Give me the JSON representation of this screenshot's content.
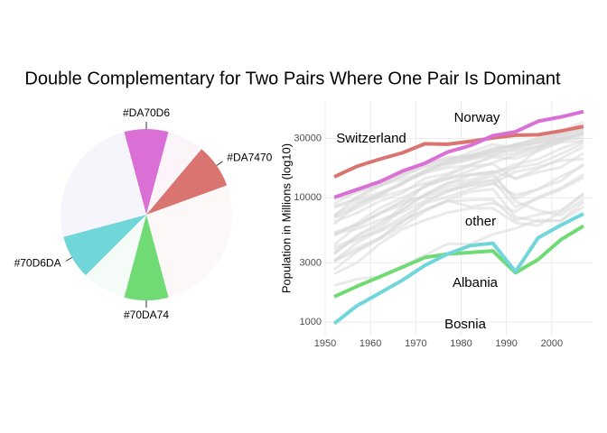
{
  "title": "Double Complementary for Two Pairs Where One Pair Is Dominant",
  "chart_data": [
    {
      "type": "pie",
      "categories": [
        "#DA70D6",
        null,
        "#DA7470",
        null,
        "#70DA74",
        null,
        "#70D6DA",
        null
      ],
      "values": [
        30,
        25,
        30,
        95,
        30,
        30,
        30,
        90
      ],
      "colors": [
        "#DA70D6",
        "#FBF4F8",
        "#DA7470",
        "#FCF8F8",
        "#70DA74",
        "#F5FCF8",
        "#70D6DA",
        "#F7F5FC"
      ]
    },
    {
      "type": "line",
      "ylabel": "Population in Millions (log10)",
      "log_y": true,
      "grid": true,
      "x": [
        1952,
        1957,
        1962,
        1967,
        1972,
        1977,
        1982,
        1987,
        1992,
        1997,
        2002,
        2007
      ],
      "xlim": [
        1950,
        2009
      ],
      "xticks": [
        1950,
        1960,
        1970,
        1980,
        1990,
        2000
      ],
      "ylim": [
        780,
        60000
      ],
      "yticks": [
        1000,
        3000,
        10000,
        30000
      ],
      "series": [
        {
          "name": "other",
          "color": "#d9d9d9",
          "lines": [
            [
              6137,
              8843,
              10751,
              12835,
              16662,
              19749,
              21597,
              23688,
              27042,
              29096,
              32418,
              36126
            ],
            [
              8343,
              9715,
              10991,
              13149,
              16672,
              19118,
              20979,
              22526,
              25576,
              27561,
              30486,
              33693
            ],
            [
              2444,
              3009,
              4255,
              5578,
              6597,
              7612,
              8225,
              8239,
              6303,
              5970,
              7697,
              10681
            ],
            [
              3119,
              4339,
              5478,
              6960,
              9164,
              11305,
              13222,
              13823,
              8448,
              9876,
              11628,
              14619
            ],
            [
              6876,
              8256,
              10137,
              11400,
              13108,
              14800,
              15377,
              16310,
              14297,
              16049,
              17596,
              22833
            ],
            [
              9692,
              11100,
              13583,
              15937,
              18866,
              20423,
              21688,
              25116,
              26407,
              29804,
              32166,
              35278
            ],
            [
              6425,
              7545,
              9372,
              10921,
              14359,
              15605,
              18533,
              21141,
              20647,
              23723,
              28205,
              33207
            ],
            [
              7030,
              8663,
              10560,
              12999,
              16107,
              18293,
              20294,
              22066,
              24703,
              25890,
              28926,
              30470
            ],
            [
              7144,
              10188,
              12902,
              14746,
              18016,
              20513,
              22032,
              24639,
              26505,
              27789,
              30036,
              32170
            ],
            [
              3531,
              4916,
              6017,
              8513,
              12725,
              14196,
              15268,
              16121,
              17541,
              18748,
              22514,
              27538
            ],
            [
              5264,
              6040,
              7550,
              9326,
              10168,
              11675,
              12546,
              12987,
              10535,
              11712,
              14843,
              18009
            ],
            [
              4931,
              6249,
              8244,
              10022,
              12269,
              14256,
              16537,
              19208,
              22014,
              24675,
              27968,
              28570
            ],
            [
              4029,
              4734,
              5338,
              6557,
              8007,
              9508,
              8451,
              9082,
              7739,
              10159,
              12002,
              15390
            ],
            [
              3068,
              3774,
              4728,
              6362,
              9022,
              10172,
              11753,
              13039,
              16207,
              17641,
              19971,
              20510
            ],
            [
              3144,
              3943,
              4734,
              6471,
              8011,
              9356,
              9605,
              9696,
              6598,
              7346,
              7885,
              10808
            ],
            [
              3581,
              4981,
              6289,
              7991,
              10522,
              12980,
              15181,
              15870,
              9325,
              7914,
              7236,
              9787
            ],
            [
              3834,
              4565,
              5693,
              7993,
              10639,
              13237,
              13926,
              15765,
              18603,
              20445,
              24835,
              28821
            ],
            [
              8528,
              9912,
              12329,
              15258,
              17832,
              18855,
              20667,
              23587,
              23880,
              25267,
              29342,
              33860
            ],
            [
              1969,
              2218,
              2323,
              2826,
              3450,
              4270,
              4241,
              5089,
              5679,
              6601,
              6508,
              8458
            ],
            [
              9980,
              11283,
              12477,
              14142,
              15895,
              17428,
              18232,
              21665,
              22705,
              26074,
              29479,
              33203
            ],
            [
              8942,
              11277,
              12790,
              15363,
              18795,
              21210,
              21399,
              23651,
              26791,
              30246,
              33725,
              36798
            ],
            [
              5211,
              5599,
              6632,
              7656,
              9531,
              11151,
              12618,
              13872,
              17559,
              24521,
              34077,
              40676
            ],
            [
              7268,
              9244,
              10350,
              13320,
              15798,
              19655,
              23270,
              26924,
              25144,
              28061,
              31163,
              36181
            ],
            [
              4215,
              5862,
              7402,
              9406,
              12384,
              15277,
              17867,
              18678,
              14215,
              17161,
              20660,
              25768
            ],
            [
              5074,
              6093,
              7482,
              8780,
              10522,
              12388,
              13304,
              15054,
              9818,
              11755,
              13639,
              18678
            ],
            [
              2648,
              3683,
              4649,
              5907,
              7778,
              9596,
              11223,
              11733,
              7003,
              6465,
              6558,
              9254
            ]
          ]
        },
        {
          "name": "Switzerland",
          "color": "#DA7470",
          "values": [
            14734,
            17909,
            20431,
            22966,
            27195,
            26982,
            28398,
            30282,
            31872,
            32135,
            34481,
            37506
          ]
        },
        {
          "name": "Norway",
          "color": "#DA70D6",
          "values": [
            10095,
            11654,
            13450,
            16362,
            18965,
            23311,
            26299,
            31541,
            33966,
            41283,
            44684,
            49357
          ]
        },
        {
          "name": "Albania",
          "color": "#70DA74",
          "values": [
            1601,
            1942,
            2313,
            2760,
            3313,
            3533,
            3631,
            3739,
            2497,
            3193,
            4604,
            5937
          ]
        },
        {
          "name": "Bosnia",
          "color": "#70D6DA",
          "values": [
            974,
            1354,
            1710,
            2172,
            2860,
            3528,
            4127,
            4314,
            2547,
            4766,
            6019,
            7446
          ]
        }
      ]
    }
  ]
}
